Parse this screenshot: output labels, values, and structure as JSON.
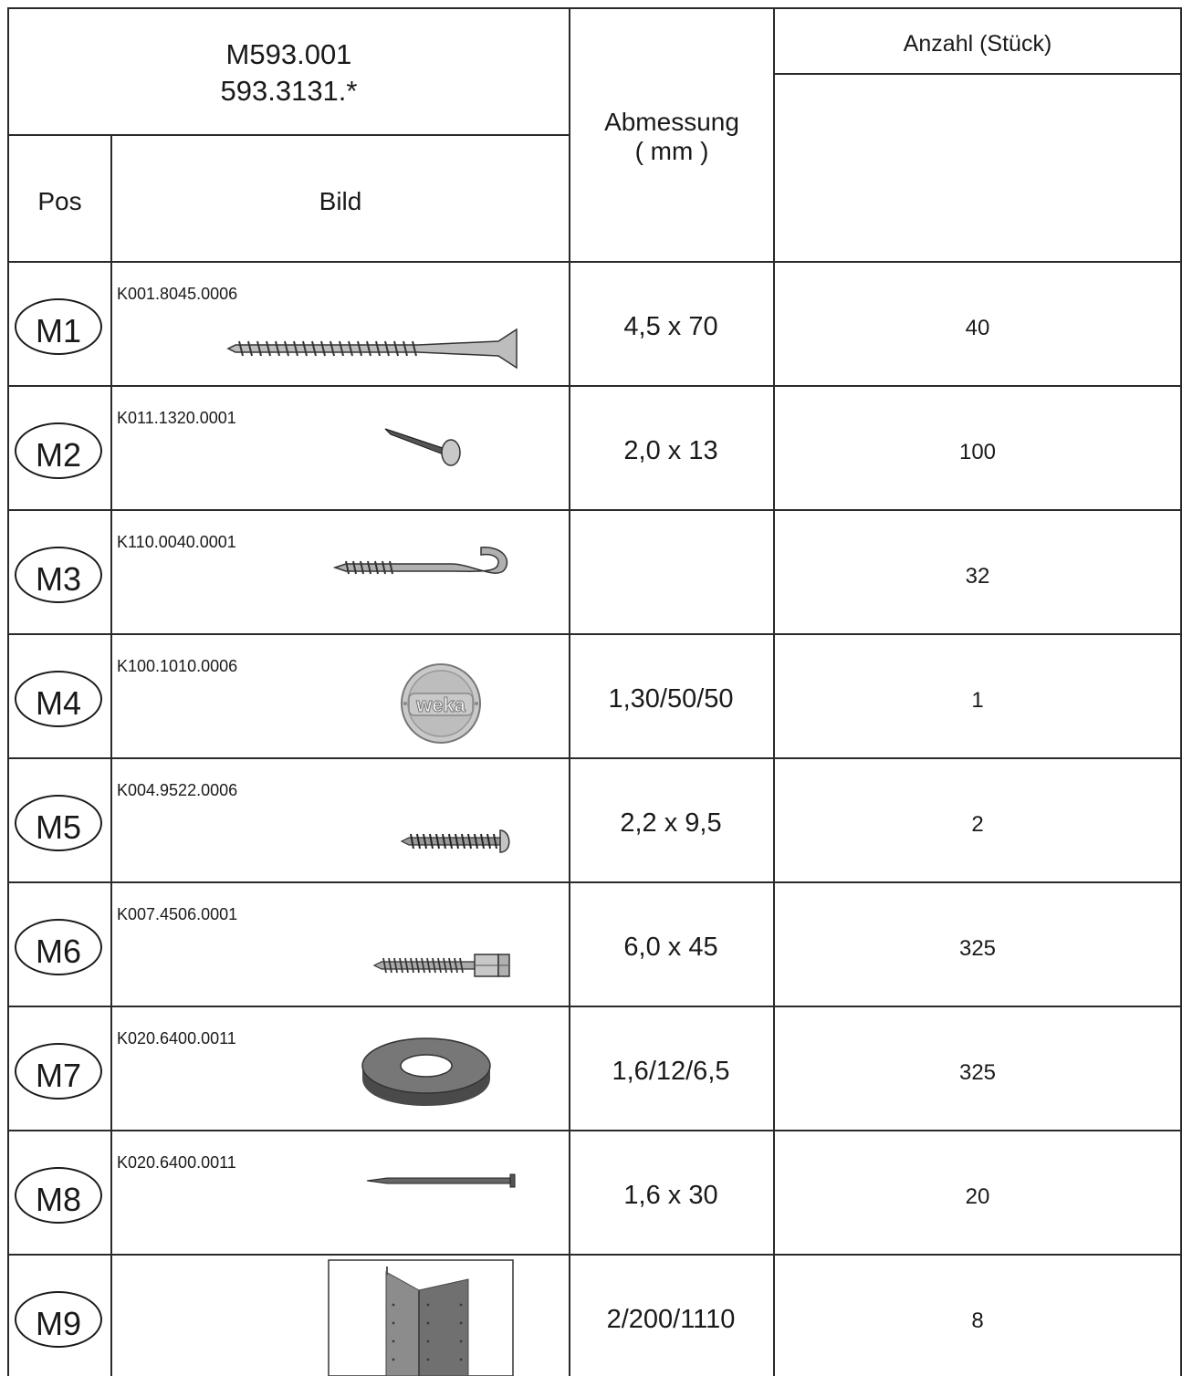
{
  "header": {
    "model": "M593.001",
    "article": "593.3131.*",
    "pos_label": "Pos",
    "picture_label": "Bild",
    "dimension_label": "Abmessung",
    "dimension_unit": "( mm )",
    "quantity_label": "Anzahl (Stück)"
  },
  "rows": [
    {
      "pos": "M1",
      "code": "K001.8045.0006",
      "dimension": "4,5 x 70",
      "quantity": "40",
      "icon": "countersunk-screw-icon"
    },
    {
      "pos": "M2",
      "code": "K011.1320.0001",
      "dimension": "2,0 x 13",
      "quantity": "100",
      "icon": "flat-head-nail-icon"
    },
    {
      "pos": "M3",
      "code": "K110.0040.0001",
      "dimension": "",
      "quantity": "32",
      "icon": "screw-hook-icon"
    },
    {
      "pos": "M4",
      "code": "K100.1010.0006",
      "dimension": "1,30/50/50",
      "quantity": "1",
      "icon": "weka-logo-plate-icon",
      "logo_text": "weka"
    },
    {
      "pos": "M5",
      "code": "K004.9522.0006",
      "dimension": "2,2 x 9,5",
      "quantity": "2",
      "icon": "round-head-screw-icon"
    },
    {
      "pos": "M6",
      "code": "K007.4506.0001",
      "dimension": "6,0 x 45",
      "quantity": "325",
      "icon": "hex-head-lag-screw-icon"
    },
    {
      "pos": "M7",
      "code": "K020.6400.0011",
      "dimension": "1,6/12/6,5",
      "quantity": "325",
      "icon": "washer-icon"
    },
    {
      "pos": "M8",
      "code": "K020.6400.0011",
      "dimension": "1,6 x 30",
      "quantity": "20",
      "icon": "pin-nail-icon"
    },
    {
      "pos": "M9",
      "code": "",
      "dimension": "2/200/1110",
      "quantity": "8",
      "icon": "metal-angle-profile-icon"
    }
  ],
  "colors": {
    "line": "#2a2a2a",
    "metal": "#a8a8a8",
    "dark_metal": "#6a6a6a"
  }
}
